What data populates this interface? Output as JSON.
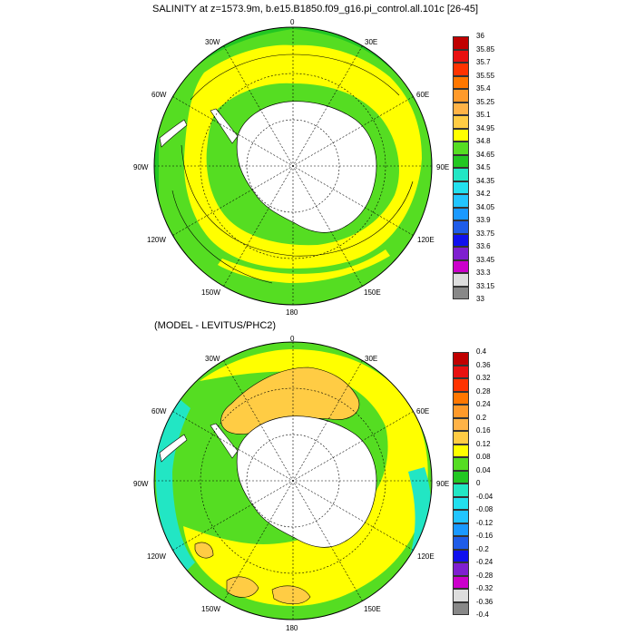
{
  "panels": [
    {
      "title": "SALINITY at z=1573.9m, b.e15.B1850.f09_g16.pi_control.all.101c [26-45]",
      "lon_labels": {
        "n": "0",
        "n30e": "30E",
        "e60": "60E",
        "e90": "90E",
        "e120": "120E",
        "s150e": "150E",
        "s": "180",
        "s150w": "150W",
        "w120": "120W",
        "w90": "90W",
        "w60": "60W",
        "n30w": "30W"
      },
      "colorbar": {
        "labels": [
          "36",
          "35.85",
          "35.7",
          "35.55",
          "35.4",
          "35.25",
          "35.1",
          "34.95",
          "34.8",
          "34.65",
          "34.5",
          "34.35",
          "34.2",
          "34.05",
          "33.9",
          "33.75",
          "33.6",
          "33.45",
          "33.3",
          "33.15",
          "33"
        ],
        "colors": [
          "#c00000",
          "#e81010",
          "#ff3300",
          "#ff7700",
          "#ff9a2a",
          "#ffb347",
          "#ffcc44",
          "#ffff00",
          "#55dd22",
          "#22c722",
          "#22e6c4",
          "#22e0ee",
          "#22c5ff",
          "#1a99ff",
          "#1f5ce8",
          "#1010ee",
          "#7f1fd0",
          "#cc00cc",
          "#dddddd",
          "#888888"
        ]
      }
    },
    {
      "title": "(MODEL - LEVITUS/PHC2)",
      "lon_labels": {
        "n": "0",
        "n30e": "30E",
        "e60": "60E",
        "e90": "90E",
        "e120": "120E",
        "s150e": "150E",
        "s": "180",
        "s150w": "150W",
        "w120": "120W",
        "w90": "90W",
        "w60": "60W",
        "n30w": "30W"
      },
      "colorbar": {
        "labels": [
          "0.4",
          "0.36",
          "0.32",
          "0.28",
          "0.24",
          "0.2",
          "0.16",
          "0.12",
          "0.08",
          "0.04",
          "0",
          "-0.04",
          "-0.08",
          "-0.12",
          "-0.16",
          "-0.2",
          "-0.24",
          "-0.28",
          "-0.32",
          "-0.36",
          "-0.4"
        ],
        "colors": [
          "#c00000",
          "#e81010",
          "#ff3300",
          "#ff7700",
          "#ff9a2a",
          "#ffb347",
          "#ffcc44",
          "#ffff00",
          "#55dd22",
          "#22c722",
          "#22e6c4",
          "#22e0ee",
          "#22c5ff",
          "#1a99ff",
          "#1f5ce8",
          "#1010ee",
          "#7f1fd0",
          "#cc00cc",
          "#dddddd",
          "#888888"
        ]
      }
    }
  ]
}
